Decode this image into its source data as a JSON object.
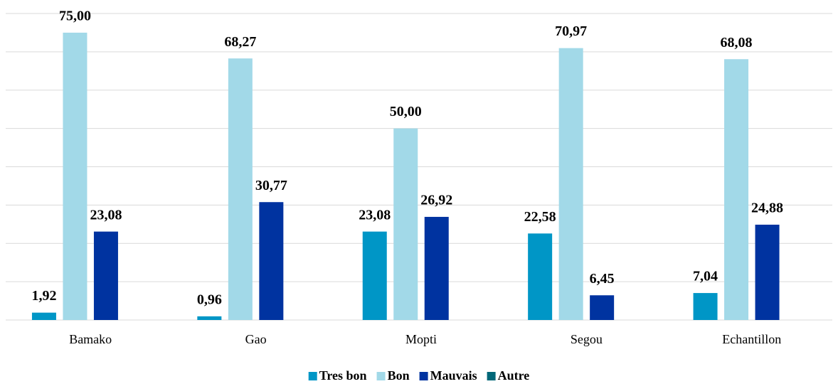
{
  "chart_data": {
    "type": "bar",
    "categories": [
      "Bamako",
      "Gao",
      "Mopti",
      "Segou",
      "Echantillon"
    ],
    "series": [
      {
        "name": "Tres bon",
        "color": "#0096c6",
        "values": [
          1.92,
          0.96,
          23.08,
          22.58,
          7.04
        ],
        "value_labels": [
          "1,92",
          "0,96",
          "23,08",
          "22,58",
          "7,04"
        ]
      },
      {
        "name": "Bon",
        "color": "#a2d9e8",
        "values": [
          75.0,
          68.27,
          50.0,
          70.97,
          68.08
        ],
        "value_labels": [
          "75,00",
          "68,27",
          "50,00",
          "70,97",
          "68,08"
        ]
      },
      {
        "name": "Mauvais",
        "color": "#0033a0",
        "values": [
          23.08,
          30.77,
          26.92,
          6.45,
          24.88
        ],
        "value_labels": [
          "23,08",
          "30,77",
          "26,92",
          "6,45",
          "24,88"
        ]
      },
      {
        "name": "Autre",
        "color": "#006778",
        "values": [
          null,
          null,
          null,
          null,
          null
        ]
      }
    ],
    "ylim": [
      0,
      80
    ],
    "yticks": [
      0,
      10,
      20,
      30,
      40,
      50,
      60,
      70,
      80
    ],
    "grid": true,
    "legend": "bottom"
  }
}
